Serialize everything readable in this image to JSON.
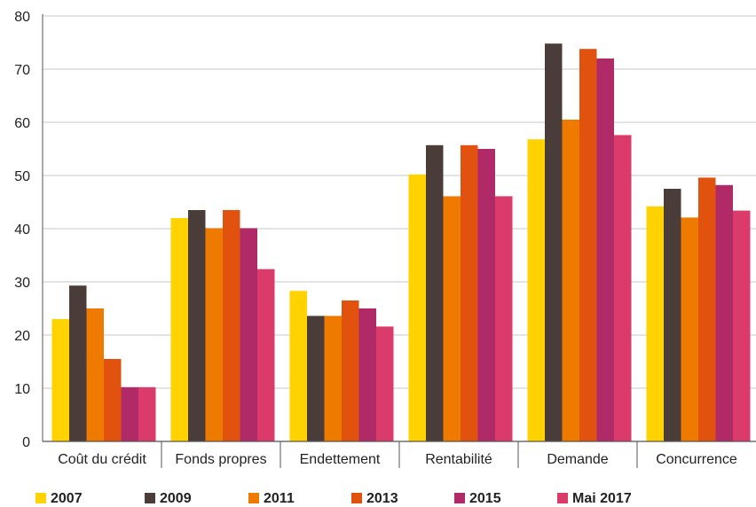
{
  "chart_data": {
    "type": "bar",
    "title": "",
    "xlabel": "",
    "ylabel": "",
    "ylim": [
      0,
      80
    ],
    "yticks": [
      0,
      10,
      20,
      30,
      40,
      50,
      60,
      70,
      80
    ],
    "grid": true,
    "legend_position": "bottom",
    "categories": [
      "Coût du crédit",
      "Fonds propres",
      "Endettement",
      "Rentabilité",
      "Demande",
      "Concurrence"
    ],
    "series": [
      {
        "name": "2007",
        "color": "#FFD200",
        "values": [
          23,
          42,
          28.3,
          50.2,
          56.8,
          44.2
        ]
      },
      {
        "name": "2009",
        "color": "#4A3C39",
        "values": [
          29.3,
          43.5,
          23.6,
          55.7,
          74.8,
          47.5
        ]
      },
      {
        "name": "2011",
        "color": "#EE7A00",
        "values": [
          25,
          40.1,
          23.6,
          46.1,
          60.5,
          42.1
        ]
      },
      {
        "name": "2013",
        "color": "#E2520F",
        "values": [
          15.5,
          43.5,
          26.5,
          55.7,
          73.8,
          49.6
        ]
      },
      {
        "name": "2015",
        "color": "#B02A68",
        "values": [
          10.2,
          40.1,
          25,
          55,
          72,
          48.2
        ]
      },
      {
        "name": "Mai 2017",
        "color": "#DB3B6B",
        "values": [
          10.2,
          32.4,
          21.6,
          46.1,
          57.6,
          43.4
        ]
      }
    ]
  }
}
